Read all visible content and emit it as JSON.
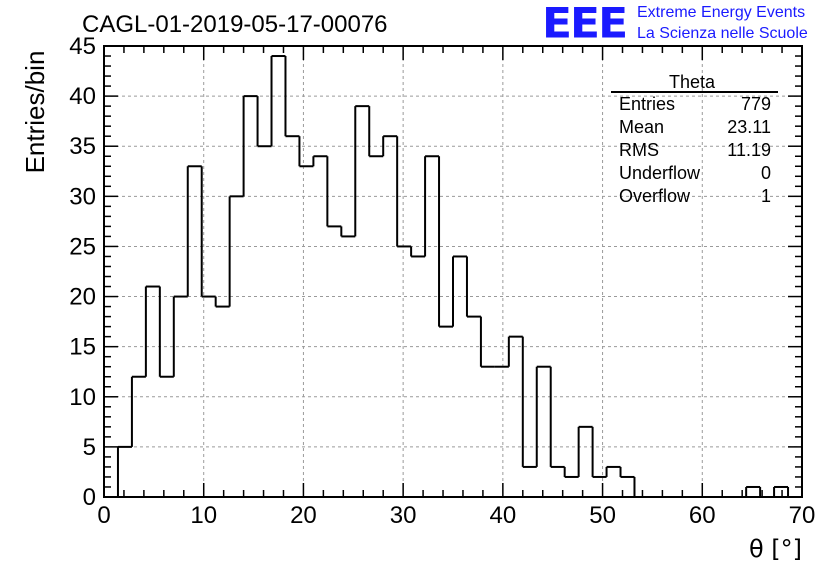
{
  "header": {
    "run_title": "CAGL-01-2019-05-17-00076",
    "logo_text": "EEE",
    "logo_line1": "Extreme Energy Events",
    "logo_line2": "La Scienza nelle Scuole",
    "logo_color": "#1a1aff"
  },
  "stats_box": {
    "title": "Theta",
    "rows": [
      {
        "label": "Entries",
        "value": "779"
      },
      {
        "label": "Mean",
        "value": "23.11"
      },
      {
        "label": "RMS",
        "value": "11.19"
      },
      {
        "label": "Underflow",
        "value": "0"
      },
      {
        "label": "Overflow",
        "value": "1"
      }
    ]
  },
  "chart_data": {
    "type": "bar",
    "style": "step-histogram",
    "title": "CAGL-01-2019-05-17-00076",
    "xlabel": "θ [°]",
    "ylabel": "Entries/bin",
    "xlim": [
      0,
      70
    ],
    "ylim": [
      0,
      45
    ],
    "bin_width": 1.4,
    "x_ticks": [
      "0",
      "10",
      "20",
      "30",
      "40",
      "50",
      "60",
      "70"
    ],
    "y_ticks": [
      "0",
      "5",
      "10",
      "15",
      "20",
      "25",
      "30",
      "35",
      "40",
      "45"
    ],
    "grid": true,
    "legend_position": "top-right",
    "series": [
      {
        "values": [
          0,
          5,
          12,
          21,
          12,
          20,
          33,
          20,
          19,
          30,
          40,
          35,
          44,
          36,
          33,
          34,
          27,
          26,
          39,
          34,
          36,
          25,
          24,
          34,
          17,
          24,
          18,
          13,
          13,
          16,
          3,
          13,
          3,
          2,
          7,
          2,
          3,
          2,
          0,
          0,
          0,
          0,
          0,
          0,
          0,
          0,
          1,
          0,
          1,
          0
        ],
        "color": "#000000"
      }
    ]
  }
}
